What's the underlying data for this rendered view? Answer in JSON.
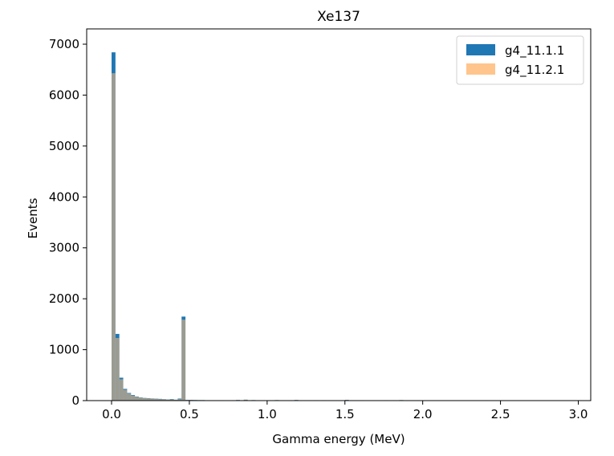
{
  "chart_data": {
    "type": "bar",
    "title": "Xe137",
    "xlabel": "Gamma energy (MeV)",
    "ylabel": "Events",
    "xlim": [
      -0.16,
      3.08
    ],
    "ylim": [
      0,
      7300
    ],
    "xticks": [
      "0.0",
      "0.5",
      "1.0",
      "1.5",
      "2.0",
      "2.5",
      "3.0"
    ],
    "yticks": [
      "0",
      "1000",
      "2000",
      "3000",
      "4000",
      "5000",
      "6000",
      "7000"
    ],
    "bin_width": 0.025,
    "legend_position": "top-right",
    "series": [
      {
        "name": "g4_11.1.1",
        "color": "#1f77b4",
        "bins": [
          [
            0.0,
            6840
          ],
          [
            0.025,
            1310
          ],
          [
            0.05,
            450
          ],
          [
            0.075,
            230
          ],
          [
            0.1,
            150
          ],
          [
            0.125,
            110
          ],
          [
            0.15,
            80
          ],
          [
            0.175,
            62
          ],
          [
            0.2,
            52
          ],
          [
            0.225,
            48
          ],
          [
            0.25,
            42
          ],
          [
            0.275,
            38
          ],
          [
            0.3,
            34
          ],
          [
            0.325,
            28
          ],
          [
            0.35,
            22
          ],
          [
            0.375,
            30
          ],
          [
            0.4,
            18
          ],
          [
            0.425,
            40
          ],
          [
            0.45,
            1650
          ],
          [
            0.475,
            14
          ],
          [
            0.5,
            14
          ],
          [
            0.525,
            12
          ],
          [
            0.55,
            10
          ],
          [
            0.575,
            10
          ],
          [
            0.6,
            8
          ],
          [
            0.625,
            8
          ],
          [
            0.65,
            8
          ],
          [
            0.675,
            6
          ],
          [
            0.7,
            8
          ],
          [
            0.725,
            6
          ],
          [
            0.75,
            6
          ],
          [
            0.775,
            8
          ],
          [
            0.8,
            12
          ],
          [
            0.825,
            6
          ],
          [
            0.85,
            18
          ],
          [
            0.9,
            10
          ],
          [
            0.95,
            8
          ],
          [
            1.0,
            6
          ],
          [
            1.05,
            10
          ],
          [
            1.1,
            6
          ],
          [
            1.175,
            12
          ],
          [
            1.25,
            6
          ],
          [
            1.3,
            8
          ],
          [
            1.4,
            6
          ],
          [
            1.5,
            14
          ],
          [
            1.6,
            8
          ],
          [
            1.75,
            8
          ],
          [
            1.85,
            10
          ],
          [
            2.4,
            8
          ],
          [
            2.85,
            8
          ]
        ]
      },
      {
        "name": "g4_11.2.1",
        "color": "#ffbb78",
        "bins": [
          [
            0.0,
            6430
          ],
          [
            0.025,
            1230
          ],
          [
            0.05,
            420
          ],
          [
            0.075,
            215
          ],
          [
            0.1,
            140
          ],
          [
            0.125,
            100
          ],
          [
            0.15,
            75
          ],
          [
            0.175,
            58
          ],
          [
            0.2,
            48
          ],
          [
            0.225,
            44
          ],
          [
            0.25,
            40
          ],
          [
            0.275,
            35
          ],
          [
            0.3,
            30
          ],
          [
            0.325,
            26
          ],
          [
            0.35,
            20
          ],
          [
            0.375,
            24
          ],
          [
            0.4,
            16
          ],
          [
            0.425,
            30
          ],
          [
            0.45,
            1590
          ],
          [
            0.475,
            12
          ],
          [
            0.5,
            12
          ],
          [
            0.525,
            10
          ],
          [
            0.55,
            8
          ],
          [
            0.575,
            8
          ],
          [
            0.6,
            8
          ],
          [
            0.625,
            6
          ],
          [
            0.65,
            6
          ],
          [
            0.675,
            6
          ],
          [
            0.7,
            6
          ],
          [
            0.725,
            6
          ],
          [
            0.75,
            6
          ],
          [
            0.775,
            6
          ],
          [
            0.8,
            8
          ],
          [
            0.825,
            6
          ],
          [
            0.85,
            16
          ],
          [
            0.9,
            8
          ],
          [
            0.95,
            6
          ],
          [
            1.0,
            6
          ],
          [
            1.05,
            8
          ],
          [
            1.1,
            6
          ],
          [
            1.175,
            8
          ],
          [
            1.25,
            6
          ],
          [
            1.3,
            6
          ],
          [
            1.35,
            8
          ],
          [
            1.4,
            6
          ],
          [
            1.5,
            10
          ],
          [
            1.6,
            6
          ],
          [
            1.75,
            6
          ],
          [
            1.85,
            8
          ],
          [
            2.4,
            6
          ]
        ]
      }
    ]
  }
}
